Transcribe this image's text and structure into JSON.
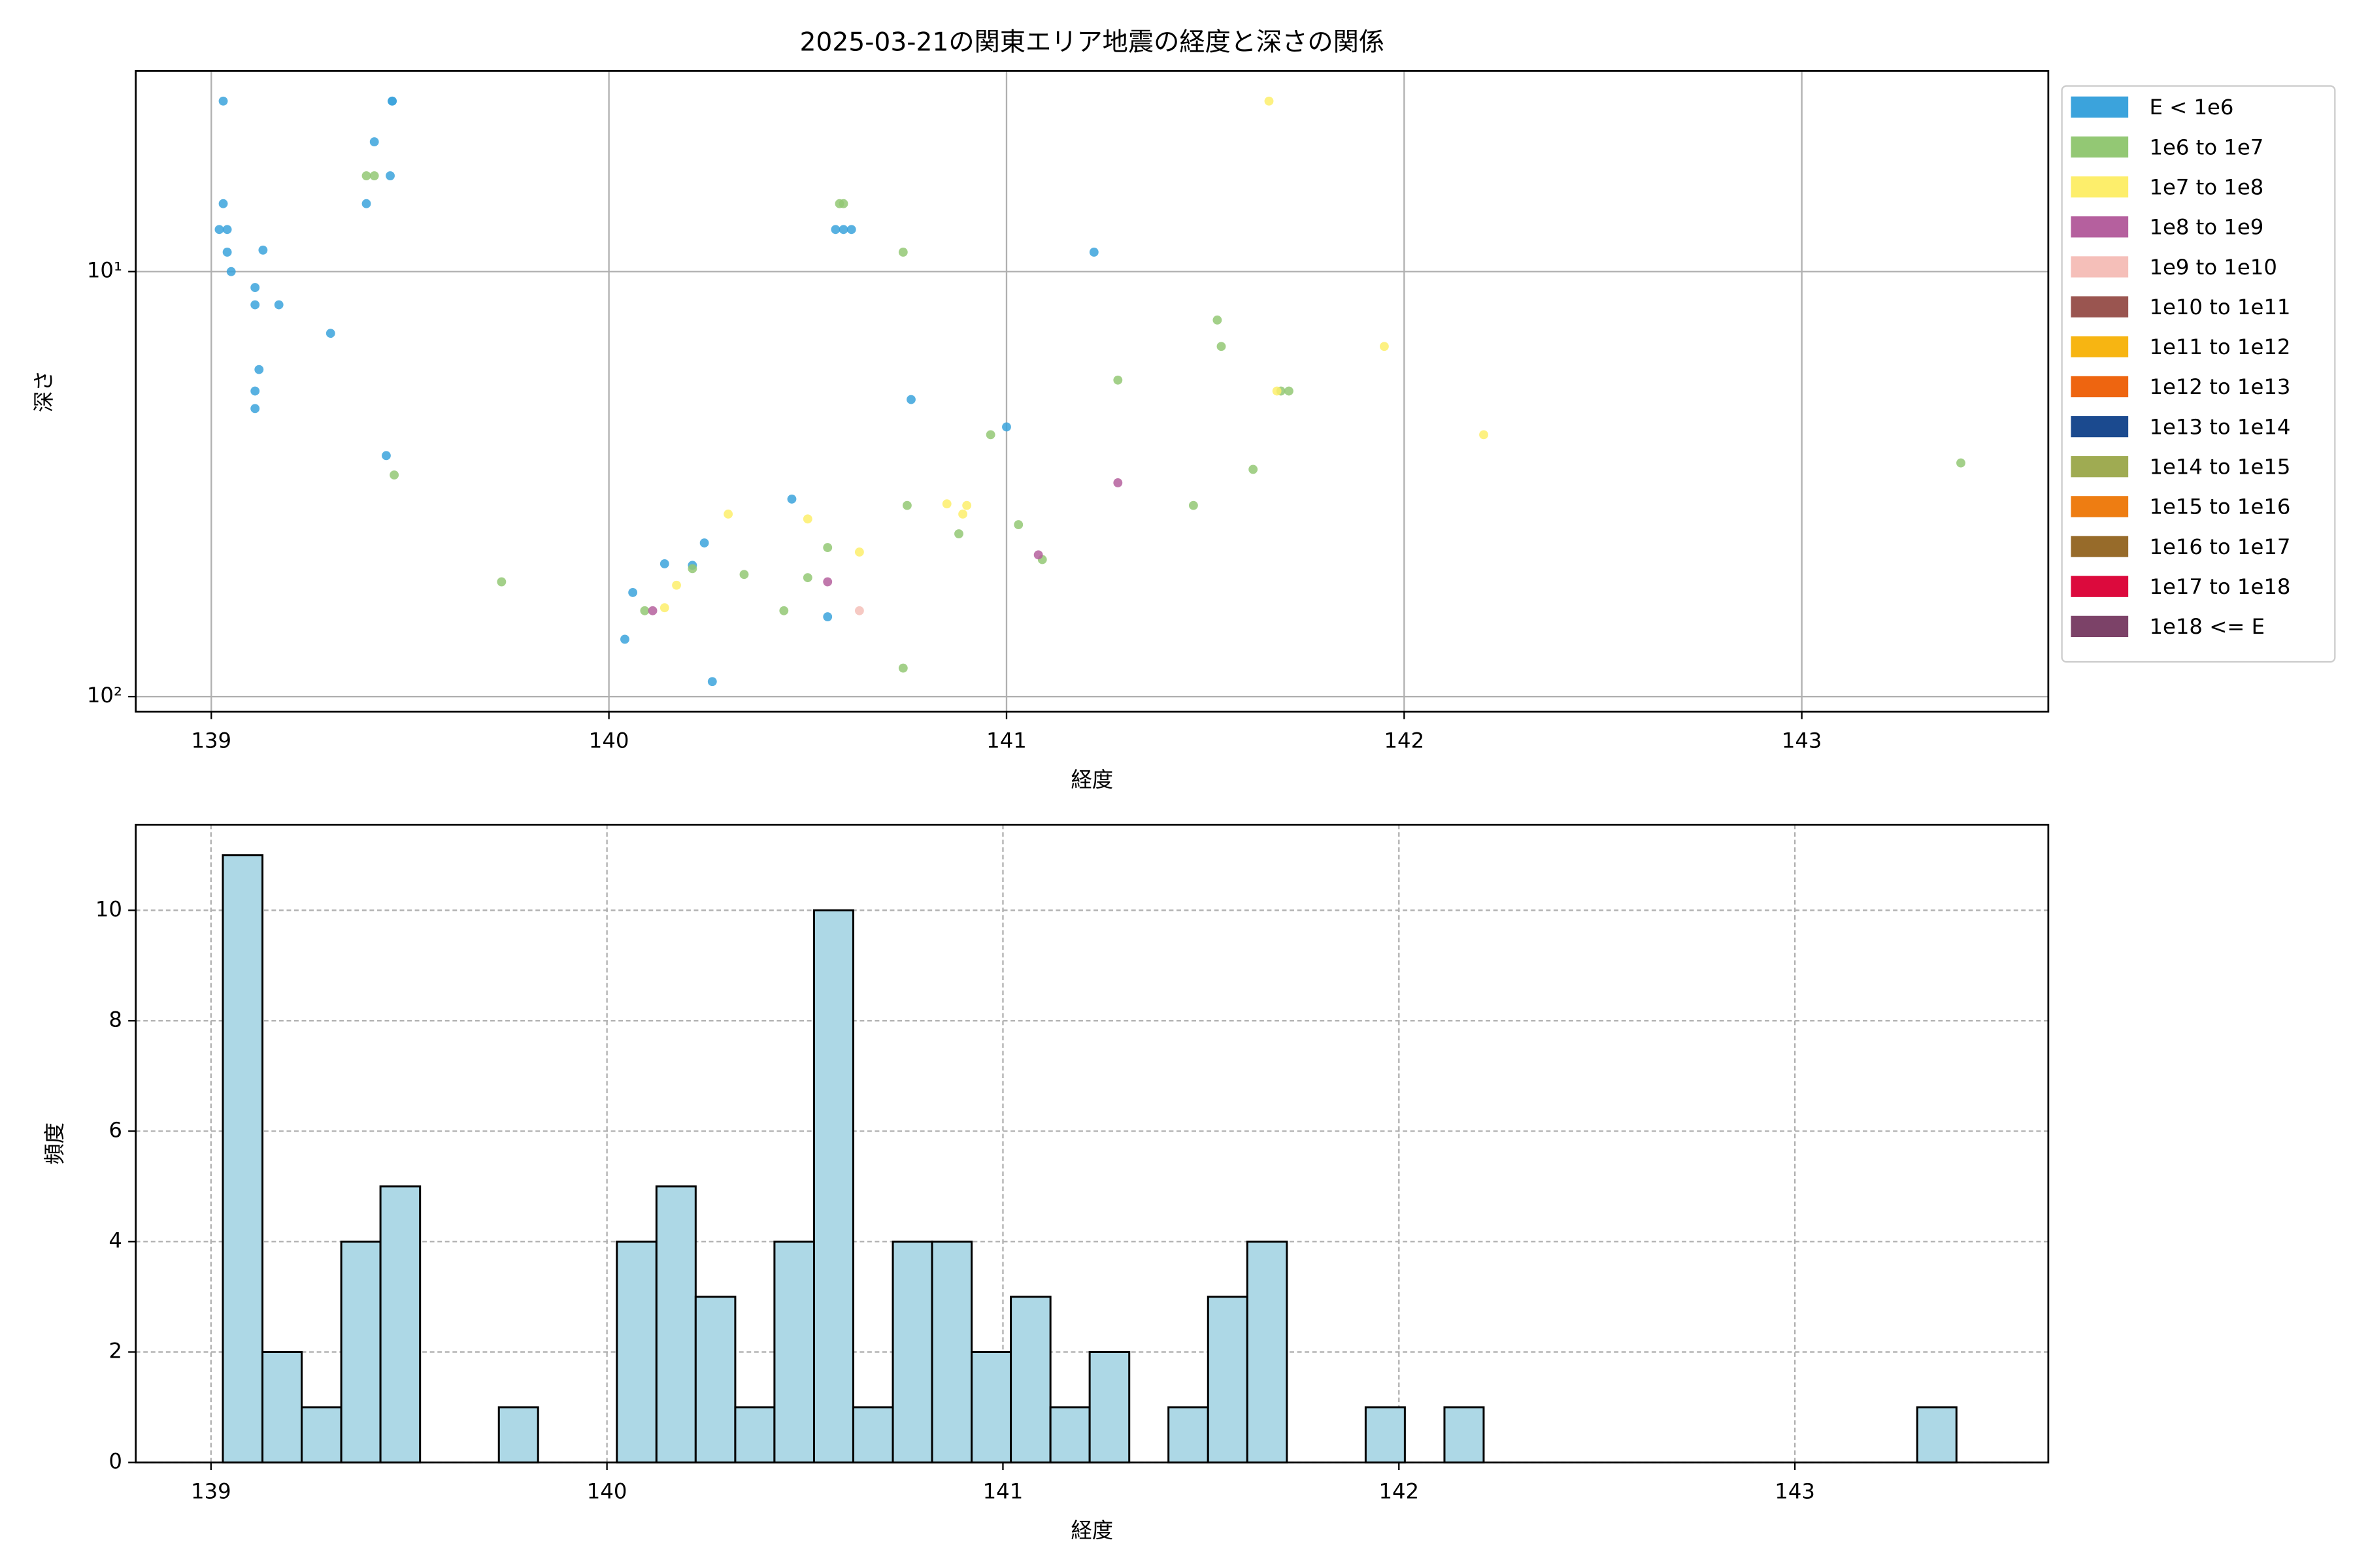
{
  "chart_data": [
    {
      "type": "scatter",
      "title": "2025-03-21の関東エリア地震の経度と深さの関係",
      "x_label": "経度",
      "y_label": "深さ",
      "xlim": [
        138.81,
        143.62
      ],
      "xticks": [
        139,
        140,
        141,
        142,
        143
      ],
      "ylim": [
        108.5,
        3.37
      ],
      "yscale": "log",
      "yticks": [
        {
          "value": 10,
          "label": "10¹"
        },
        {
          "value": 100,
          "label": "10²"
        }
      ],
      "grid": true,
      "legend_position": "outside-right",
      "series": [
        {
          "name": "E < 1e6",
          "color": "#3ba3dc",
          "x": [
            139.03,
            139.455,
            139.455,
            139.41,
            139.45,
            139.03,
            139.39,
            139.02,
            139.04,
            139.04,
            139.13,
            139.05,
            139.11,
            139.11,
            139.17,
            139.3,
            139.12,
            139.11,
            139.11,
            139.44,
            140.57,
            140.59,
            140.61,
            141.22,
            140.76,
            141.0,
            140.46,
            140.24,
            140.14,
            140.21,
            140.06,
            140.55,
            140.04,
            140.26
          ],
          "y": [
            3.97,
            3.97,
            3.97,
            4.95,
            5.95,
            6.92,
            6.92,
            7.96,
            7.96,
            9.0,
            8.9,
            10,
            10.9,
            11.97,
            11.97,
            13.97,
            17.0,
            19.1,
            21.0,
            27.1,
            7.96,
            7.96,
            7.96,
            9.0,
            20.0,
            23.2,
            34.3,
            43.5,
            48.7,
            49.1,
            56.9,
            64.9,
            73.3,
            92.2
          ]
        },
        {
          "name": "1e6 to 1e7",
          "color": "#93c874",
          "x": [
            139.39,
            139.41,
            140.58,
            140.59,
            140.74,
            141.53,
            141.54,
            141.28,
            141.69,
            141.71,
            140.96,
            139.46,
            141.62,
            143.4,
            140.75,
            141.47,
            141.03,
            140.88,
            140.55,
            141.09,
            140.21,
            140.34,
            140.5,
            139.73,
            140.09,
            140.44,
            140.74
          ],
          "y": [
            5.95,
            5.95,
            6.92,
            6.92,
            9.0,
            13.0,
            15.0,
            18.0,
            19.1,
            19.1,
            24.2,
            30.1,
            29.2,
            28.2,
            35.5,
            35.5,
            39.4,
            41.4,
            44.6,
            47.6,
            50.0,
            51.6,
            52.5,
            53.7,
            62.8,
            62.8,
            85.7
          ]
        },
        {
          "name": "1e7 to 1e8",
          "color": "#fdee6b",
          "x": [
            141.66,
            141.95,
            141.68,
            142.2,
            140.85,
            140.9,
            140.89,
            140.3,
            140.5,
            140.63,
            140.17,
            140.14
          ],
          "y": [
            3.97,
            15.0,
            19.1,
            24.2,
            35.2,
            35.5,
            37.2,
            37.2,
            38.2,
            45.7,
            54.7,
            61.8
          ]
        },
        {
          "name": "1e8 to 1e9",
          "color": "#b5609e",
          "x": [
            141.28,
            141.08,
            140.55,
            140.11
          ],
          "y": [
            31.4,
            46.4,
            53.7,
            62.8
          ]
        },
        {
          "name": "1e9 to 1e10",
          "color": "#f5bfb9",
          "x": [
            140.63
          ],
          "y": [
            62.8
          ]
        },
        {
          "name": "1e10 to 1e11",
          "color": "#9a5550",
          "x": [],
          "y": []
        },
        {
          "name": "1e11 to 1e12",
          "color": "#f7b512",
          "x": [],
          "y": []
        },
        {
          "name": "1e12 to 1e13",
          "color": "#ee6510",
          "x": [],
          "y": []
        },
        {
          "name": "1e13 to 1e14",
          "color": "#1b4a8f",
          "x": [],
          "y": []
        },
        {
          "name": "1e14 to 1e15",
          "color": "#9fab52",
          "x": [],
          "y": []
        },
        {
          "name": "1e15 to 1e16",
          "color": "#ee7d12",
          "x": [],
          "y": []
        },
        {
          "name": "1e16 to 1e17",
          "color": "#976b2a",
          "x": [],
          "y": []
        },
        {
          "name": "1e17 to 1e18",
          "color": "#dc0a3d",
          "x": [],
          "y": []
        },
        {
          "name": "1e18 <= E",
          "color": "#7c4268",
          "x": [],
          "y": []
        }
      ]
    },
    {
      "type": "histogram",
      "x_label": "経度",
      "y_label": "頻度",
      "xlim": [
        138.81,
        143.64
      ],
      "xticks": [
        139,
        140,
        141,
        142,
        143
      ],
      "ylim": [
        0,
        11.55
      ],
      "yticks": [
        0,
        2,
        4,
        6,
        8,
        10
      ],
      "grid": true,
      "color": "#add8e6",
      "bins": [
        139.03,
        139.13,
        139.229,
        139.329,
        139.428,
        139.528,
        139.627,
        139.727,
        139.826,
        139.926,
        140.025,
        140.125,
        140.224,
        140.324,
        140.423,
        140.523,
        140.622,
        140.722,
        140.821,
        140.921,
        141.02,
        141.12,
        141.219,
        141.319,
        141.418,
        141.518,
        141.617,
        141.717,
        141.816,
        141.916,
        142.015,
        142.115,
        142.214,
        142.314,
        142.413,
        142.513,
        142.612,
        142.712,
        142.811,
        142.911,
        143.01,
        143.11,
        143.209,
        143.309,
        143.408
      ],
      "counts": [
        11,
        2,
        1,
        4,
        5,
        0,
        0,
        1,
        0,
        0,
        4,
        5,
        3,
        1,
        4,
        10,
        1,
        4,
        4,
        2,
        3,
        1,
        2,
        0,
        1,
        3,
        4,
        0,
        0,
        1,
        0,
        1,
        0,
        0,
        0,
        0,
        0,
        0,
        0,
        0,
        0,
        0,
        0,
        1
      ]
    }
  ]
}
